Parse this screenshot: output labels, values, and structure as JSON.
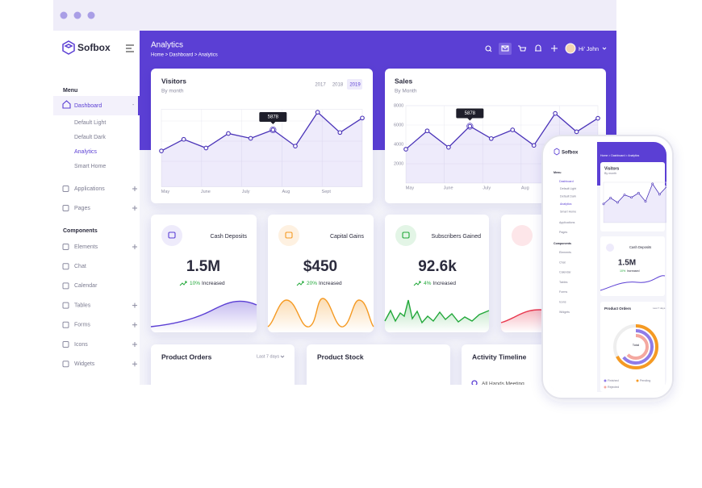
{
  "brand": "Sofbox",
  "sidebar": {
    "menu_heading": "Menu",
    "dashboard": "Dashboard",
    "dashboard_items": [
      "Default Light",
      "Default Dark",
      "Analytics",
      "Smart Home"
    ],
    "menu_items": [
      "Applications",
      "Pages"
    ],
    "components_heading": "Components",
    "component_items": [
      "Elements",
      "Chat",
      "Calendar",
      "Tables",
      "Forms",
      "Icons",
      "Widgets"
    ]
  },
  "header": {
    "title": "Analytics",
    "breadcrumb": "Home > Dashboard > Analytics",
    "greeting": "Hi' John"
  },
  "visitors": {
    "title": "Visitors",
    "subtitle": "By month",
    "years": [
      "2017",
      "2018",
      "2019"
    ],
    "x_labels": [
      "May",
      "June",
      "July",
      "Aug",
      "Sept"
    ],
    "values": [
      3700,
      4900,
      4000,
      5500,
      5000,
      5878,
      4200,
      7700,
      5600,
      7100
    ],
    "ylim": [
      0,
      8000
    ]
  },
  "sales": {
    "title": "Sales",
    "subtitle": "By Month",
    "x_labels": [
      "May",
      "June",
      "July",
      "Aug",
      "Sept"
    ],
    "values": [
      3500,
      5400,
      3700,
      5878,
      4600,
      5500,
      3900,
      7200,
      5300,
      6700
    ],
    "ylim": [
      0,
      8000
    ],
    "yticks": [
      2000,
      4000,
      6000,
      8000
    ]
  },
  "stats": [
    {
      "title": "Cash Deposits",
      "value": "1.5M",
      "change": "10%",
      "change_label": "Increased"
    },
    {
      "title": "Capital Gains",
      "value": "$450",
      "change": "20%",
      "change_label": "Increased"
    },
    {
      "title": "Subscribers Gained",
      "value": "92.6k",
      "change": "4%",
      "change_label": "Increased"
    }
  ],
  "bottom": {
    "orders": "Product Orders",
    "orders_range": "Last 7 days",
    "stock": "Product Stock",
    "timeline": "Activity Timeline",
    "timeline_items": [
      "All Hands Meeting"
    ]
  },
  "phone": {
    "total": "Total",
    "legend": [
      "Finished",
      "Pending",
      "Rejected"
    ]
  }
}
